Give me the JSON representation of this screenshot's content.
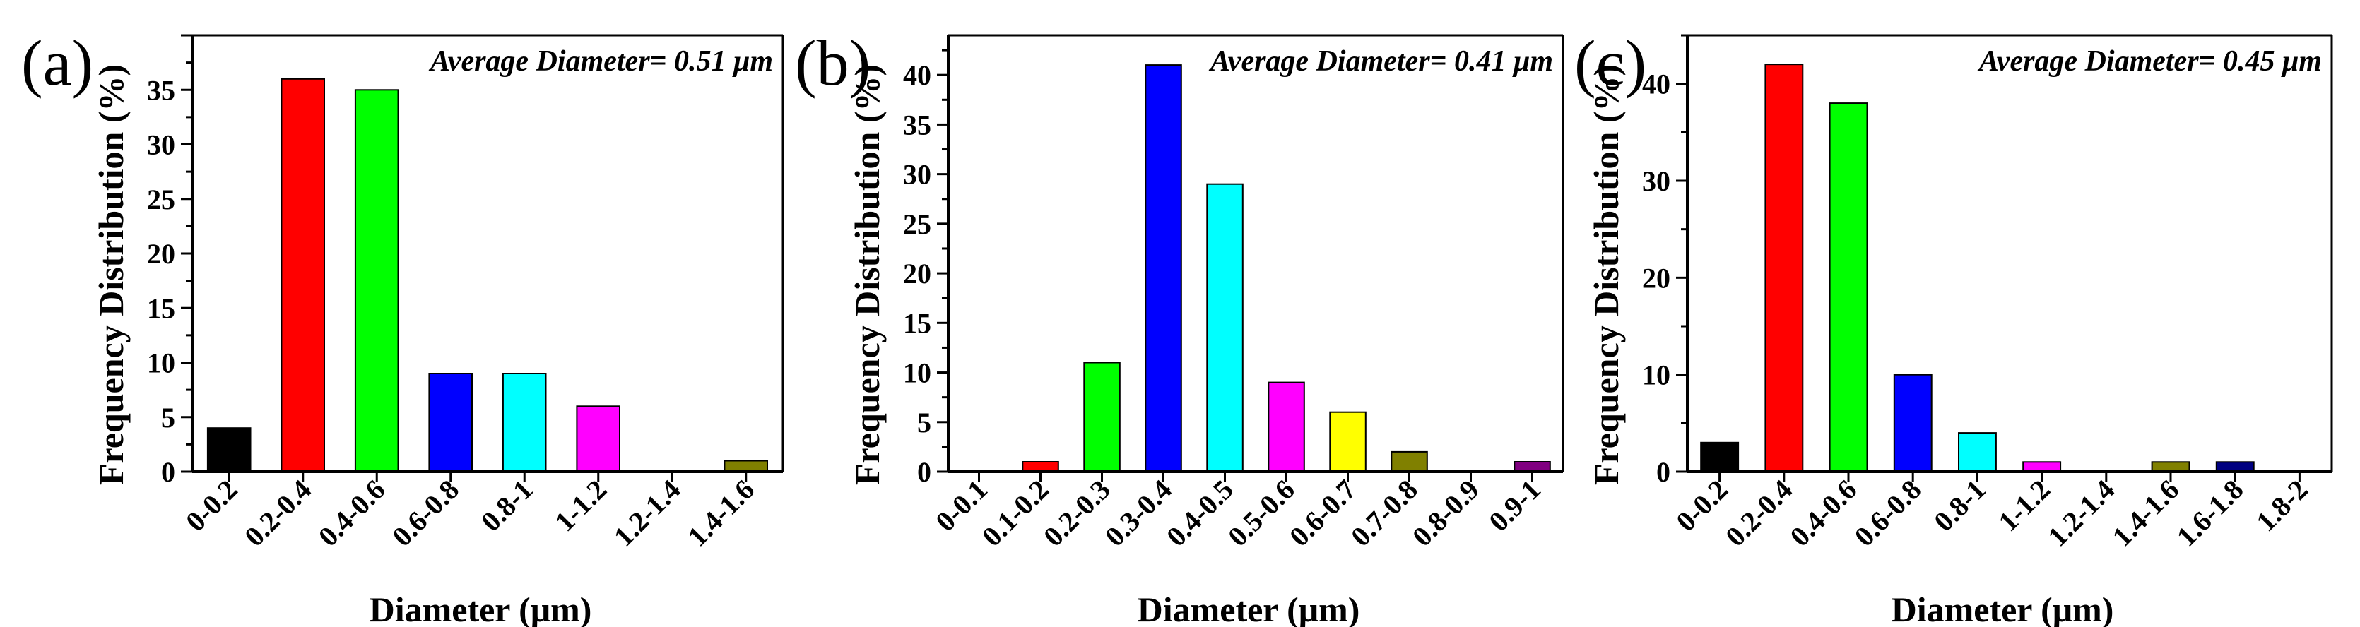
{
  "chart_data": [
    {
      "type": "bar",
      "panel_label": "(a)",
      "annotation": "Average Diameter= 0.51 μm",
      "xlabel": "Diameter (μm)",
      "ylabel": "Frequency Distribution (%)",
      "ylim": [
        0,
        40
      ],
      "yticks": [
        0,
        5,
        10,
        15,
        20,
        25,
        30,
        35
      ],
      "categories": [
        "0-0.2",
        "0.2-0.4",
        "0.4-0.6",
        "0.6-0.8",
        "0.8-1",
        "1-1.2",
        "1.2-1.4",
        "1.4-1.6"
      ],
      "values": [
        4,
        36,
        35,
        9,
        9,
        6,
        0,
        1
      ],
      "colors": [
        "#000000",
        "#ff0000",
        "#00ff00",
        "#0000ff",
        "#00ffff",
        "#ff00ff",
        "#ffff00",
        "#808000"
      ]
    },
    {
      "type": "bar",
      "panel_label": "(b)",
      "annotation": "Average Diameter= 0.41 μm",
      "xlabel": "Diameter (μm)",
      "ylabel": "Frequency Distribution (%)",
      "ylim": [
        0,
        44
      ],
      "yticks": [
        0,
        5,
        10,
        15,
        20,
        25,
        30,
        35,
        40
      ],
      "categories": [
        "0-0.1",
        "0.1-0.2",
        "0.2-0.3",
        "0.3-0.4",
        "0.4-0.5",
        "0.5-0.6",
        "0.6-0.7",
        "0.7-0.8",
        "0.8-0.9",
        "0.9-1"
      ],
      "values": [
        0,
        1,
        11,
        41,
        29,
        9,
        6,
        2,
        0,
        1
      ],
      "colors": [
        "#000000",
        "#ff0000",
        "#00ff00",
        "#0000ff",
        "#00ffff",
        "#ff00ff",
        "#ffff00",
        "#808000",
        "#000080",
        "#800080"
      ]
    },
    {
      "type": "bar",
      "panel_label": "(c)",
      "annotation": "Average Diameter= 0.45 μm",
      "xlabel": "Diameter (μm)",
      "ylabel": "Frequency Distribution (%)",
      "ylim": [
        0,
        45
      ],
      "yticks": [
        0,
        10,
        20,
        30,
        40
      ],
      "categories": [
        "0-0.2",
        "0.2-0.4",
        "0.4-0.6",
        "0.6-0.8",
        "0.8-1",
        "1-1.2",
        "1.2-1.4",
        "1.4-1.6",
        "1.6-1.8",
        "1.8-2"
      ],
      "values": [
        3,
        42,
        38,
        10,
        4,
        1,
        0,
        1,
        1,
        0
      ],
      "colors": [
        "#000000",
        "#ff0000",
        "#00ff00",
        "#0000ff",
        "#00ffff",
        "#ff00ff",
        "#ffff00",
        "#808000",
        "#000080",
        "#800080"
      ]
    }
  ]
}
